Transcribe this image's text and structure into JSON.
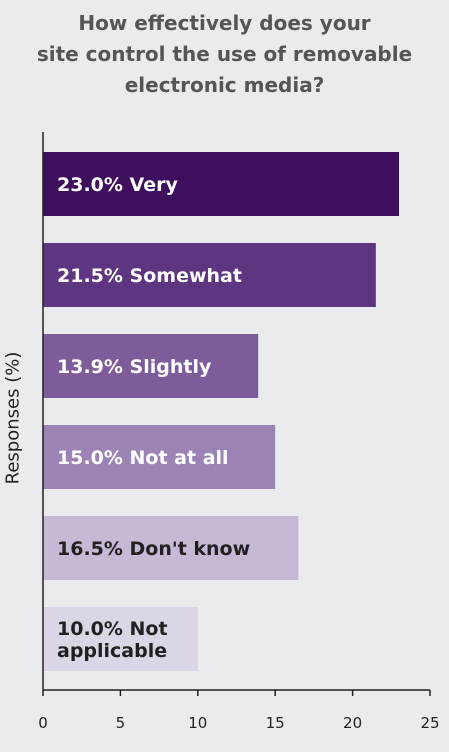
{
  "chart_data": {
    "type": "bar",
    "orientation": "horizontal",
    "title_lines": [
      "How effectively does your",
      "site control the use of removable",
      "electronic media?"
    ],
    "xlabel": "",
    "ylabel": "Responses (%)",
    "xlim": [
      0,
      25
    ],
    "xticks": [
      "0",
      "5",
      "10",
      "15",
      "20",
      "25"
    ],
    "xtick_values": [
      0,
      5,
      10,
      15,
      20,
      25
    ],
    "grid": false,
    "bars": [
      {
        "label_lines": [
          "23.0% Very"
        ],
        "value": 23.0,
        "color": "#3d0f5c",
        "text_color": "#ffffff"
      },
      {
        "label_lines": [
          "21.5% Somewhat"
        ],
        "value": 21.5,
        "color": "#5e3580",
        "text_color": "#ffffff"
      },
      {
        "label_lines": [
          "13.9% Slightly"
        ],
        "value": 13.9,
        "color": "#7e5c9a",
        "text_color": "#ffffff"
      },
      {
        "label_lines": [
          "15.0% Not at all"
        ],
        "value": 15.0,
        "color": "#9b83b5",
        "text_color": "#ffffff"
      },
      {
        "label_lines": [
          "16.5% Don't know"
        ],
        "value": 16.5,
        "color": "#c5b9d6",
        "text_color": "#231f20"
      },
      {
        "label_lines": [
          "10.0% Not",
          "applicable"
        ],
        "value": 10.0,
        "color": "#dcd5e6",
        "text_color": "#231f20"
      }
    ]
  }
}
